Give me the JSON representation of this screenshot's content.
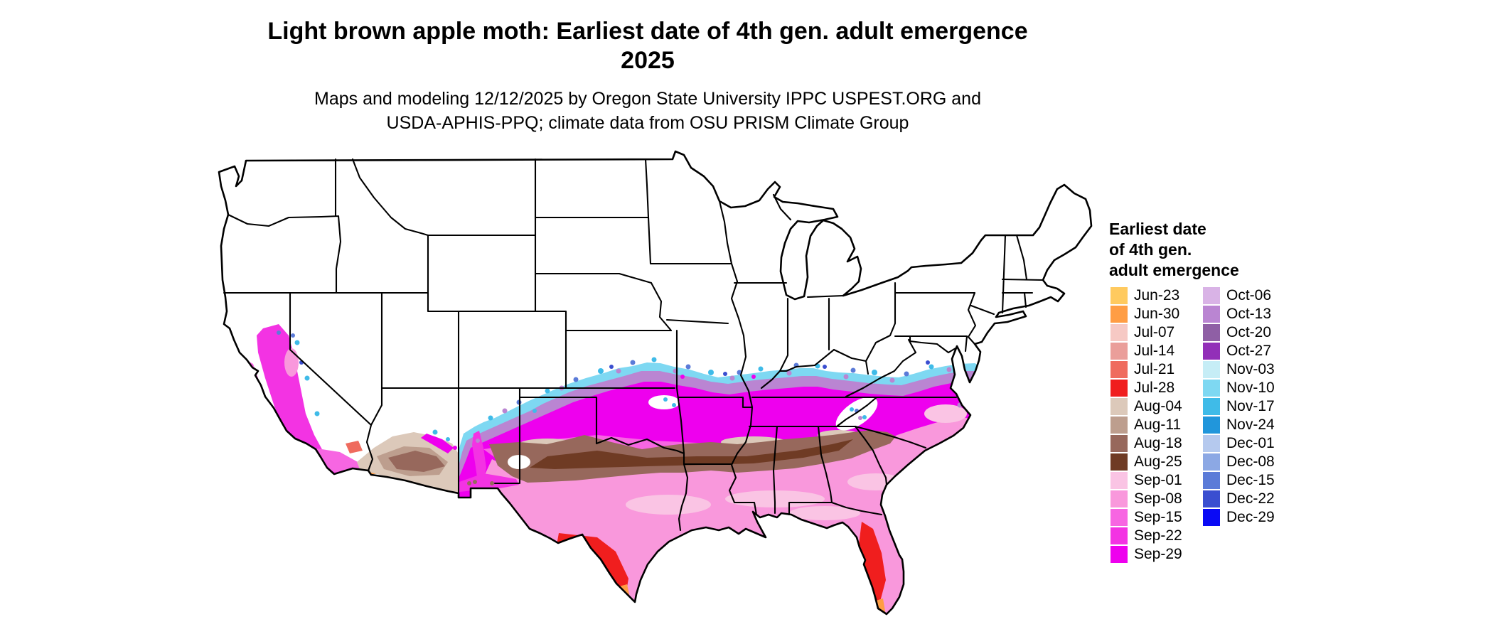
{
  "title": {
    "line1": "Light brown apple moth: Earliest date of 4th gen. adult emergence",
    "line2": "2025"
  },
  "subtitle": {
    "line1": "Maps and modeling 12/12/2025 by Oregon State University IPPC USPEST.ORG and",
    "line2": "USDA-APHIS-PPQ; climate data from OSU PRISM Climate Group"
  },
  "legend": {
    "title_lines": [
      "Earliest date",
      "of 4th gen.",
      "adult emergence"
    ],
    "column1": [
      {
        "label": "Jun-23",
        "color": "#FFCA5F"
      },
      {
        "label": "Jun-30",
        "color": "#FF9D44"
      },
      {
        "label": "Jul-07",
        "color": "#F6C9C4"
      },
      {
        "label": "Jul-14",
        "color": "#EA9E9A"
      },
      {
        "label": "Jul-21",
        "color": "#EF6B5E"
      },
      {
        "label": "Jul-28",
        "color": "#F01E1E"
      },
      {
        "label": "Aug-04",
        "color": "#DCC9BA"
      },
      {
        "label": "Aug-11",
        "color": "#BD9E8E"
      },
      {
        "label": "Aug-18",
        "color": "#97685C"
      },
      {
        "label": "Aug-25",
        "color": "#6F3B24"
      },
      {
        "label": "Sep-01",
        "color": "#FAC4E4"
      },
      {
        "label": "Sep-08",
        "color": "#F998DC"
      },
      {
        "label": "Sep-15",
        "color": "#F766E2"
      },
      {
        "label": "Sep-22",
        "color": "#F333E3"
      },
      {
        "label": "Sep-29",
        "color": "#EE00EE"
      }
    ],
    "column2": [
      {
        "label": "Oct-06",
        "color": "#D9B3E6"
      },
      {
        "label": "Oct-13",
        "color": "#BA85D2"
      },
      {
        "label": "Oct-20",
        "color": "#8F5FA5"
      },
      {
        "label": "Oct-27",
        "color": "#922FB8"
      },
      {
        "label": "Nov-03",
        "color": "#C6EDF6"
      },
      {
        "label": "Nov-10",
        "color": "#7ED8F2"
      },
      {
        "label": "Nov-17",
        "color": "#3FBBE8"
      },
      {
        "label": "Nov-24",
        "color": "#2196DB"
      },
      {
        "label": "Dec-01",
        "color": "#B5C9EE"
      },
      {
        "label": "Dec-08",
        "color": "#8CA8E4"
      },
      {
        "label": "Dec-15",
        "color": "#5B7BD8"
      },
      {
        "label": "Dec-22",
        "color": "#3A4ED0"
      },
      {
        "label": "Dec-29",
        "color": "#0A0AF5"
      }
    ]
  }
}
